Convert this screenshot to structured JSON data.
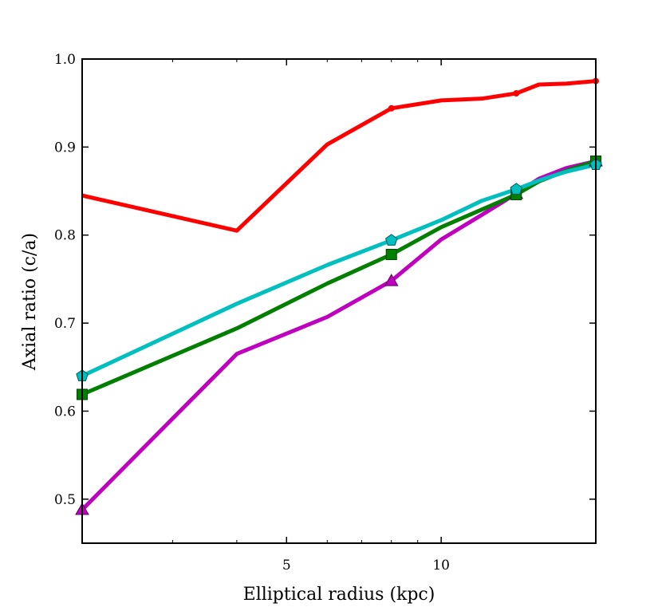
{
  "chart_data": {
    "type": "line",
    "title": "",
    "xlabel": "Elliptical radius (kpc)",
    "ylabel": "Axial ratio (c/a)",
    "xscale": "log",
    "xlim": [
      2.0,
      20.0
    ],
    "ylim": [
      0.45,
      1.0
    ],
    "xticks": [
      5,
      10
    ],
    "xtick_labels": [
      "5",
      "10"
    ],
    "xminor_ticks": [
      3,
      4,
      6,
      7,
      8,
      9,
      20
    ],
    "yticks": [
      0.5,
      0.6,
      0.7,
      0.8,
      0.9,
      1.0
    ],
    "ytick_labels": [
      "0.5",
      "0.6",
      "0.7",
      "0.8",
      "0.9",
      "1.0"
    ],
    "grid": false,
    "series": [
      {
        "name": "red",
        "color": "#ff0000",
        "marker": "dot",
        "x": [
          2.0,
          4.0,
          6.0,
          8.0,
          10.0,
          12.0,
          14.0,
          15.5,
          17.5,
          20.0
        ],
        "y": [
          0.845,
          0.805,
          0.903,
          0.944,
          0.953,
          0.955,
          0.961,
          0.971,
          0.972,
          0.975
        ],
        "marker_x": [
          8.0,
          14.0,
          20.0
        ],
        "marker_y": [
          0.944,
          0.961,
          0.975
        ]
      },
      {
        "name": "magenta",
        "color": "#bf00bf",
        "marker": "triangle",
        "x": [
          2.0,
          4.0,
          6.0,
          8.0,
          10.0,
          12.0,
          14.0,
          15.5,
          17.5,
          20.0
        ],
        "y": [
          0.488,
          0.665,
          0.707,
          0.748,
          0.795,
          0.823,
          0.847,
          0.864,
          0.876,
          0.884
        ],
        "marker_x": [
          2.0,
          8.0,
          14.0,
          20.0
        ],
        "marker_y": [
          0.488,
          0.748,
          0.847,
          0.884
        ]
      },
      {
        "name": "green",
        "color": "#007f00",
        "marker": "square",
        "x": [
          2.0,
          4.0,
          6.0,
          8.0,
          10.0,
          12.0,
          14.0,
          15.5,
          17.5,
          20.0
        ],
        "y": [
          0.619,
          0.694,
          0.745,
          0.778,
          0.809,
          0.829,
          0.846,
          0.861,
          0.873,
          0.884
        ],
        "marker_x": [
          2.0,
          8.0,
          14.0,
          20.0
        ],
        "marker_y": [
          0.619,
          0.778,
          0.846,
          0.884
        ]
      },
      {
        "name": "cyan",
        "color": "#00bfbf",
        "marker": "pentagon",
        "x": [
          2.0,
          4.0,
          6.0,
          8.0,
          10.0,
          12.0,
          14.0,
          15.5,
          17.5,
          20.0
        ],
        "y": [
          0.64,
          0.722,
          0.766,
          0.794,
          0.817,
          0.839,
          0.852,
          0.862,
          0.872,
          0.88
        ],
        "marker_x": [
          2.0,
          8.0,
          14.0,
          20.0
        ],
        "marker_y": [
          0.64,
          0.794,
          0.852,
          0.88
        ]
      }
    ]
  }
}
